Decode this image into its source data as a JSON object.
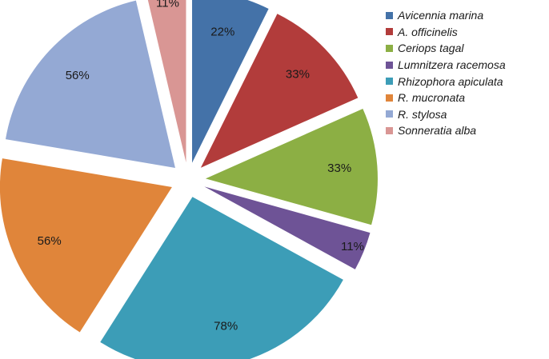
{
  "chart_data": {
    "type": "pie",
    "exploded": true,
    "categories": [
      "Avicennia marina",
      "A. officinelis",
      "Ceriops tagal",
      "Lumnitzera racemosa",
      "Rhizophora apiculata",
      "R. mucronata",
      "R. stylosa",
      "Sonneratia alba"
    ],
    "values": [
      22,
      33,
      33,
      11,
      78,
      56,
      56,
      11
    ],
    "data_labels": [
      "22%",
      "33%",
      "33%",
      "11%",
      "78%",
      "56%",
      "56%",
      "11%"
    ],
    "colors": [
      "#4472a8",
      "#b23c3b",
      "#8caf44",
      "#6e5396",
      "#3c9db7",
      "#e0853a",
      "#94a9d4",
      "#d99694"
    ],
    "legend_position": "top-right"
  }
}
